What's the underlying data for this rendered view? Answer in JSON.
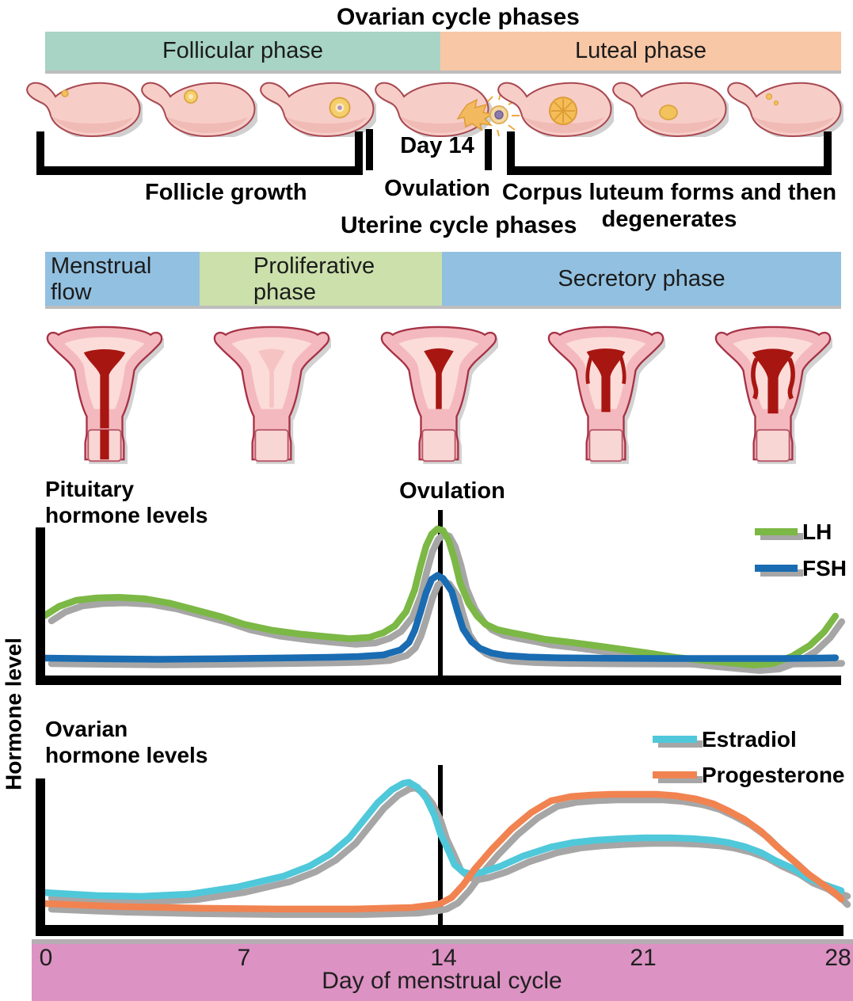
{
  "ovarian_section": {
    "title": "Ovarian cycle phases",
    "phase_bars": [
      {
        "label": "Follicular phase",
        "color": "#a7d4c4"
      },
      {
        "label": "Luteal phase",
        "color": "#f8c7a6"
      }
    ],
    "stage_labels": {
      "left": "Follicle growth",
      "middle_line1": "Day 14",
      "middle_line2": "Ovulation",
      "right_line1": "Corpus luteum forms and then",
      "right_line2": "degenerates"
    },
    "ovary_count": 7
  },
  "uterine_section": {
    "title": "Uterine cycle phases",
    "phase_bars": [
      {
        "label_line1": "Menstrual",
        "label_line2": "flow",
        "color": "#92c0e0"
      },
      {
        "label_line1": "Proliferative",
        "label_line2": "phase",
        "color": "#cbe0ab"
      },
      {
        "label_line1": "Secretory phase",
        "label_line2": "",
        "color": "#92c0e0"
      }
    ],
    "uterus_count": 5
  },
  "y_axis_label": "Hormone level",
  "x_axis": {
    "title": "Day of menstrual cycle",
    "ticks": [
      "0",
      "7",
      "14",
      "21",
      "28"
    ],
    "bar_color": "#dc92c3"
  },
  "chart_data": [
    {
      "type": "line",
      "title": "Pituitary hormone levels",
      "title_lines": [
        "Pituitary",
        "hormone levels"
      ],
      "annotation": "Ovulation",
      "annotation_x_day": 14,
      "xlabel": "Day of menstrual cycle",
      "ylabel": "Hormone level",
      "x_range": [
        0,
        28
      ],
      "legend_position": "top-right",
      "grid": false,
      "series": [
        {
          "name": "LH",
          "color": "#7cb845",
          "points": [
            [
              0,
              40
            ],
            [
              0.5,
              46
            ],
            [
              1.1,
              50
            ],
            [
              1.8,
              51.5
            ],
            [
              2.6,
              52
            ],
            [
              3.5,
              51
            ],
            [
              4.4,
              48
            ],
            [
              5.2,
              44
            ],
            [
              6.2,
              39
            ],
            [
              7,
              34
            ],
            [
              8,
              30
            ],
            [
              9,
              27.5
            ],
            [
              9.8,
              26
            ],
            [
              10.7,
              24.5
            ],
            [
              11.4,
              25.3
            ],
            [
              11.9,
              28.4
            ],
            [
              12.3,
              33
            ],
            [
              12.7,
              42.5
            ],
            [
              13,
              57
            ],
            [
              13.2,
              72.5
            ],
            [
              13.4,
              86
            ],
            [
              13.6,
              94
            ],
            [
              13.8,
              97.4
            ],
            [
              14,
              96.3
            ],
            [
              14.2,
              89.5
            ],
            [
              14.4,
              77
            ],
            [
              14.6,
              61.5
            ],
            [
              14.9,
              48
            ],
            [
              15.2,
              39.5
            ],
            [
              15.5,
              34
            ],
            [
              15.9,
              30.5
            ],
            [
              16.4,
              28.5
            ],
            [
              17,
              26.3
            ],
            [
              17.6,
              24
            ],
            [
              18.5,
              22
            ],
            [
              19.3,
              20
            ],
            [
              20.3,
              17.4
            ],
            [
              21.3,
              14.7
            ],
            [
              22.2,
              12
            ],
            [
              23.2,
              10
            ],
            [
              24.2,
              8.2
            ],
            [
              24.9,
              7
            ],
            [
              25.6,
              8
            ],
            [
              26.3,
              13
            ],
            [
              26.9,
              20
            ],
            [
              27.4,
              29
            ],
            [
              27.8,
              39.5
            ]
          ]
        },
        {
          "name": "FSH",
          "color": "#1a6cb2",
          "points": [
            [
              0,
              11.6
            ],
            [
              2,
              11.1
            ],
            [
              4,
              10.8
            ],
            [
              6,
              11.1
            ],
            [
              8,
              11.6
            ],
            [
              10,
              12.1
            ],
            [
              11,
              12.6
            ],
            [
              11.9,
              13.7
            ],
            [
              12.5,
              17
            ],
            [
              12.8,
              22
            ],
            [
              13,
              30
            ],
            [
              13.2,
              42
            ],
            [
              13.4,
              55
            ],
            [
              13.6,
              64
            ],
            [
              13.8,
              66.5
            ],
            [
              14,
              64.5
            ],
            [
              14.3,
              56
            ],
            [
              14.5,
              43
            ],
            [
              14.7,
              31
            ],
            [
              15,
              22.5
            ],
            [
              15.3,
              18
            ],
            [
              15.7,
              15
            ],
            [
              16.2,
              13.3
            ],
            [
              17,
              12.3
            ],
            [
              18,
              11.8
            ],
            [
              20,
              11.4
            ],
            [
              22,
              11.3
            ],
            [
              24,
              11.3
            ],
            [
              26,
              11.3
            ],
            [
              27,
              11.5
            ],
            [
              27.8,
              11.8
            ]
          ]
        }
      ]
    },
    {
      "type": "line",
      "title": "Ovarian hormone levels",
      "title_lines": [
        "Ovarian",
        "hormone levels"
      ],
      "annotation": "",
      "annotation_x_day": 14,
      "xlabel": "Day of menstrual cycle",
      "ylabel": "Hormone level",
      "x_range": [
        0,
        28
      ],
      "legend_position": "top-right",
      "grid": false,
      "series": [
        {
          "name": "Estradiol",
          "color": "#4fc8da",
          "points": [
            [
              0,
              21.2
            ],
            [
              1.8,
              19.2
            ],
            [
              3.4,
              18.7
            ],
            [
              5.1,
              20.2
            ],
            [
              6.8,
              25
            ],
            [
              8.4,
              32
            ],
            [
              9.3,
              38.5
            ],
            [
              10,
              46
            ],
            [
              10.7,
              57
            ],
            [
              11.2,
              68.5
            ],
            [
              11.7,
              80
            ],
            [
              12.2,
              88.5
            ],
            [
              12.6,
              92.7
            ],
            [
              12.8,
              93.3
            ],
            [
              13.1,
              90
            ],
            [
              13.4,
              83
            ],
            [
              13.7,
              71.5
            ],
            [
              13.9,
              60
            ],
            [
              14.2,
              48
            ],
            [
              14.4,
              39.5
            ],
            [
              14.7,
              34.7
            ],
            [
              15,
              33.2
            ],
            [
              15.4,
              34.7
            ],
            [
              16,
              38.3
            ],
            [
              16.8,
              45
            ],
            [
              17.8,
              51
            ],
            [
              18.6,
              54
            ],
            [
              19.4,
              55.5
            ],
            [
              20.3,
              56.5
            ],
            [
              21.1,
              57
            ],
            [
              22,
              57
            ],
            [
              22.8,
              56.5
            ],
            [
              23.5,
              55.4
            ],
            [
              24,
              54
            ],
            [
              24.6,
              51.3
            ],
            [
              25.2,
              47.2
            ],
            [
              25.7,
              42
            ],
            [
              26.3,
              37
            ],
            [
              26.8,
              31
            ],
            [
              27.4,
              26.4
            ],
            [
              27.8,
              23.8
            ],
            [
              28,
              22.5
            ]
          ]
        },
        {
          "name": "Progesterone",
          "color": "#f18351",
          "points": [
            [
              0,
              14
            ],
            [
              2.6,
              12
            ],
            [
              5.4,
              11
            ],
            [
              8.2,
              10.4
            ],
            [
              10.9,
              10.4
            ],
            [
              12.9,
              11.4
            ],
            [
              13.6,
              13
            ],
            [
              13.9,
              14
            ],
            [
              14.3,
              18
            ],
            [
              14.7,
              26
            ],
            [
              15.1,
              36.3
            ],
            [
              15.7,
              49.2
            ],
            [
              16.4,
              62.7
            ],
            [
              17.1,
              73.6
            ],
            [
              17.8,
              81.3
            ],
            [
              18.5,
              84
            ],
            [
              19.2,
              85
            ],
            [
              19.9,
              85.5
            ],
            [
              20.7,
              85.5
            ],
            [
              21.5,
              85.5
            ],
            [
              22.2,
              84.5
            ],
            [
              22.9,
              82.4
            ],
            [
              23.5,
              79.3
            ],
            [
              24,
              75
            ],
            [
              24.6,
              69
            ],
            [
              25.2,
              61
            ],
            [
              25.7,
              52
            ],
            [
              26.3,
              42.5
            ],
            [
              26.8,
              34
            ],
            [
              27.4,
              26
            ],
            [
              27.8,
              20.7
            ],
            [
              28,
              17
            ]
          ]
        }
      ]
    }
  ]
}
